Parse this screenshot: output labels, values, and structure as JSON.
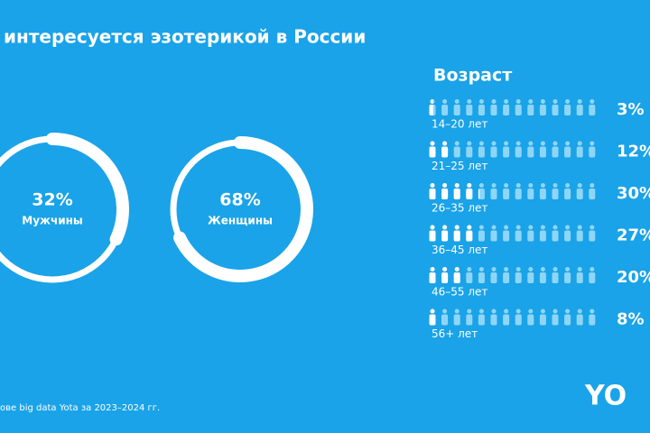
{
  "title": "интересуется эзотерикой в России",
  "footnote": "ове big data Yota за 2023–2024 гг.",
  "logo": "YO",
  "chart_data": [
    {
      "type": "donut",
      "categories": [
        "Мужчины",
        "Женщины"
      ],
      "values": [
        32,
        68
      ],
      "value_labels": [
        "32%",
        "68%"
      ],
      "color": "#ffffff"
    },
    {
      "type": "pictogram",
      "title": "Возраст",
      "categories": [
        "14–20 лет",
        "21–25 лет",
        "26–35 лет",
        "36–45 лет",
        "46–55 лет",
        "56+ лет"
      ],
      "values": [
        3,
        12,
        30,
        27,
        20,
        8
      ],
      "value_labels": [
        "3%",
        "12%",
        "30%",
        "27%",
        "20%",
        "8%"
      ],
      "color": "#ffffff",
      "empty_color": "#8fd6f6",
      "icons": 14
    }
  ]
}
